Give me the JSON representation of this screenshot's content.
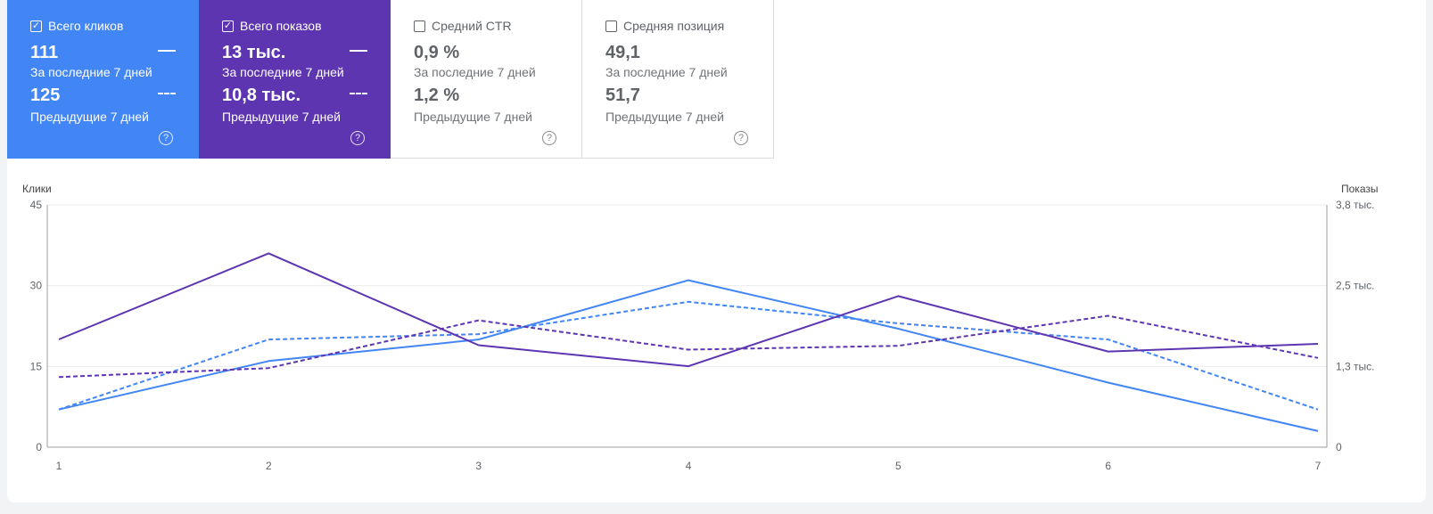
{
  "metrics": [
    {
      "label": "Всего кликов",
      "checked": true,
      "current_value": "111",
      "current_period": "За последние 7 дней",
      "previous_value": "125",
      "previous_period": "Предыдущие 7 дней",
      "color": "#4285f4"
    },
    {
      "label": "Всего показов",
      "checked": true,
      "current_value": "13 тыс.",
      "current_period": "За последние 7 дней",
      "previous_value": "10,8 тыс.",
      "previous_period": "Предыдущие 7 дней",
      "color": "#5e35b1"
    },
    {
      "label": "Средний CTR",
      "checked": false,
      "current_value": "0,9 %",
      "current_period": "За последние 7 дней",
      "previous_value": "1,2 %",
      "previous_period": "Предыдущие 7 дней"
    },
    {
      "label": "Средняя позиция",
      "checked": false,
      "current_value": "49,1",
      "current_period": "За последние 7 дней",
      "previous_value": "51,7",
      "previous_period": "Предыдущие 7 дней"
    }
  ],
  "help_icon": "help-circle-icon",
  "chart_data": {
    "type": "line",
    "x": [
      1,
      2,
      3,
      4,
      5,
      6,
      7
    ],
    "xtick_labels": [
      "1",
      "2",
      "3",
      "4",
      "5",
      "6",
      "7"
    ],
    "ylabel_left": "Клики",
    "ylabel_right": "Показы",
    "ylim_left": [
      0,
      45
    ],
    "yticks_left": [
      "0",
      "15",
      "30",
      "45"
    ],
    "ylim_right": [
      0,
      3800
    ],
    "yticks_right": [
      "0",
      "1,3 тыс.",
      "2,5 тыс.",
      "3,8 тыс."
    ],
    "yticks_right_values": [
      0,
      1267,
      2533,
      3800
    ],
    "grid": true,
    "series": [
      {
        "axis": "left",
        "style": "solid",
        "color": "#4285f4",
        "values": [
          7,
          16,
          20,
          31,
          22,
          12,
          3
        ]
      },
      {
        "axis": "left",
        "style": "dashed",
        "color": "#4285f4",
        "values": [
          7,
          20,
          21,
          27,
          23,
          20,
          7
        ]
      },
      {
        "axis": "right",
        "style": "solid",
        "color": "#5e35b1",
        "values": [
          1690,
          3040,
          1600,
          1270,
          2370,
          1500,
          1620
        ]
      },
      {
        "axis": "right",
        "style": "dashed",
        "color": "#5e35b1",
        "values": [
          1100,
          1240,
          1990,
          1530,
          1590,
          2060,
          1400
        ]
      }
    ]
  }
}
